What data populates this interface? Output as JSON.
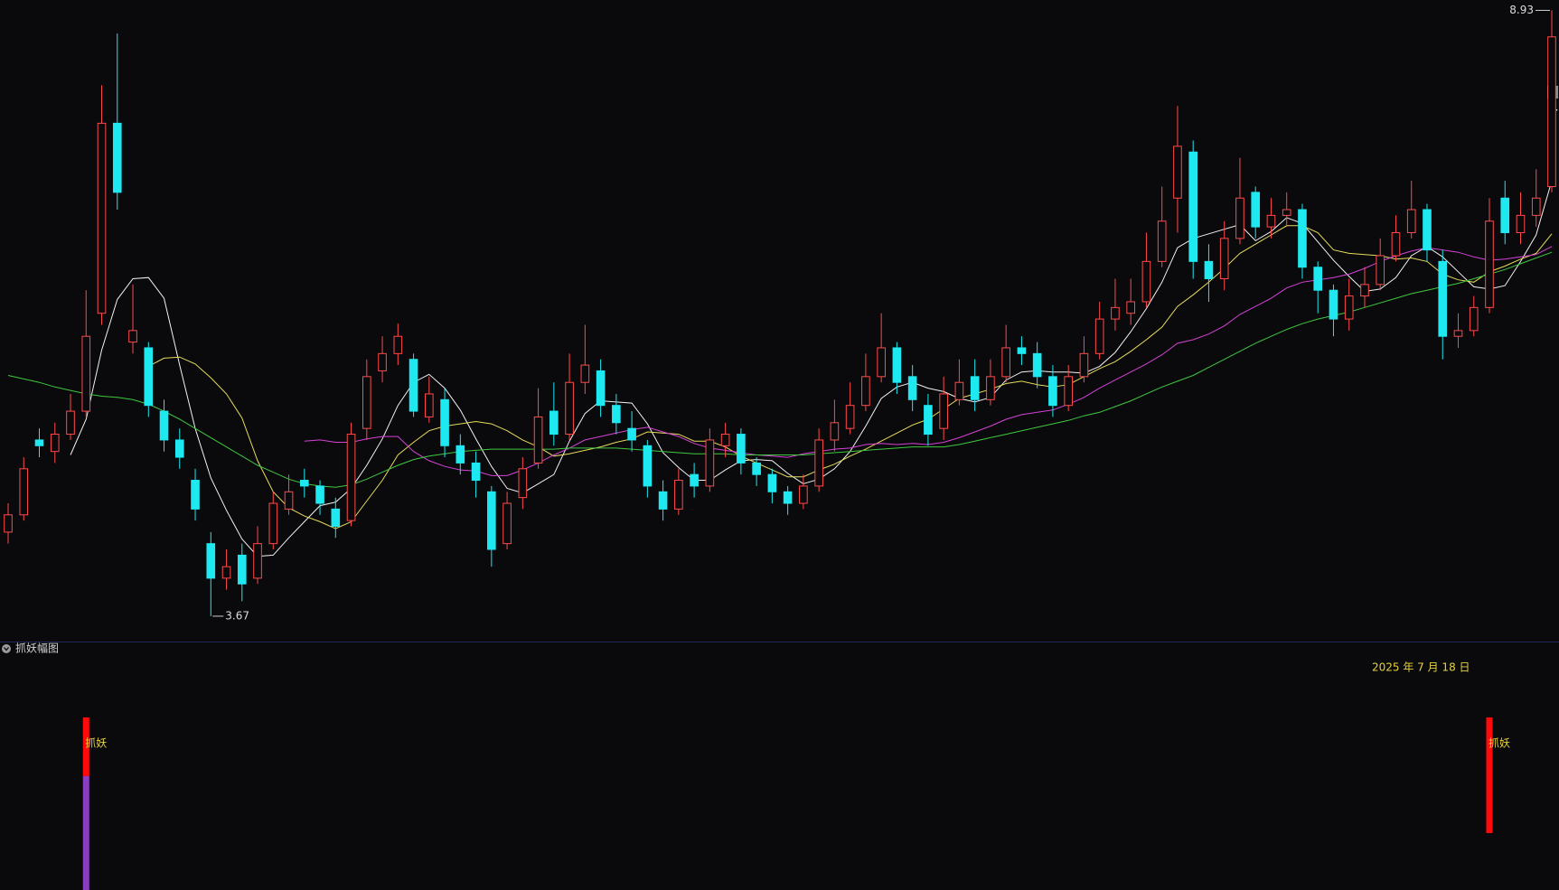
{
  "chart_data": {
    "type": "candlestick",
    "up_color": "#ff4a4a",
    "down_color": "#1ee8f0",
    "ylim": [
      3.45,
      9.02
    ],
    "open": [
      4.4,
      4.55,
      5.2,
      5.1,
      5.25,
      5.45,
      6.3,
      7.95,
      6.05,
      6.0,
      5.45,
      5.2,
      4.85,
      4.3,
      4.0,
      4.2,
      4.0,
      4.3,
      4.6,
      4.85,
      4.8,
      4.6,
      4.5,
      5.3,
      5.8,
      5.95,
      5.9,
      5.4,
      5.55,
      5.15,
      5.0,
      4.75,
      4.3,
      4.7,
      5.0,
      5.45,
      5.25,
      5.7,
      5.8,
      5.5,
      5.3,
      5.15,
      4.75,
      4.6,
      4.9,
      4.8,
      5.15,
      5.25,
      5.0,
      4.9,
      4.75,
      4.65,
      4.8,
      5.2,
      5.3,
      5.5,
      5.75,
      6.0,
      5.75,
      5.5,
      5.3,
      5.55,
      5.75,
      5.55,
      5.75,
      6.0,
      5.95,
      5.75,
      5.5,
      5.75,
      5.95,
      6.25,
      6.3,
      6.4,
      6.75,
      7.3,
      7.7,
      6.75,
      6.6,
      6.95,
      7.35,
      7.05,
      7.15,
      7.2,
      6.7,
      6.5,
      6.25,
      6.45,
      6.55,
      6.8,
      7.0,
      7.2,
      6.75,
      6.1,
      6.15,
      6.35,
      7.3,
      7.0,
      7.15,
      7.4
    ],
    "high": [
      4.65,
      5.05,
      5.3,
      5.35,
      5.6,
      6.5,
      8.28,
      8.73,
      6.55,
      6.05,
      5.55,
      5.3,
      4.95,
      4.4,
      4.25,
      4.3,
      4.45,
      4.75,
      4.9,
      4.95,
      4.85,
      4.7,
      5.35,
      5.9,
      6.1,
      6.21,
      5.95,
      5.75,
      5.65,
      5.25,
      5.1,
      4.8,
      4.75,
      5.05,
      5.65,
      5.7,
      5.95,
      6.2,
      5.9,
      5.6,
      5.45,
      5.2,
      4.85,
      4.95,
      5.0,
      5.3,
      5.35,
      5.3,
      5.05,
      4.95,
      4.8,
      4.9,
      5.3,
      5.55,
      5.7,
      5.95,
      6.3,
      6.05,
      5.85,
      5.6,
      5.75,
      5.9,
      5.9,
      5.9,
      6.2,
      6.1,
      6.05,
      5.85,
      5.85,
      6.1,
      6.4,
      6.6,
      6.6,
      7.0,
      7.4,
      8.1,
      7.8,
      6.9,
      7.1,
      7.65,
      7.4,
      7.3,
      7.35,
      7.25,
      6.75,
      6.55,
      6.6,
      6.7,
      6.95,
      7.15,
      7.45,
      7.25,
      6.85,
      6.3,
      6.45,
      7.3,
      7.45,
      7.35,
      7.55,
      8.93
    ],
    "low": [
      4.3,
      4.5,
      5.05,
      5.0,
      5.2,
      5.4,
      6.2,
      7.2,
      5.95,
      5.4,
      5.1,
      4.95,
      4.5,
      3.67,
      3.9,
      3.8,
      3.95,
      4.25,
      4.55,
      4.7,
      4.55,
      4.35,
      4.45,
      5.2,
      5.7,
      5.85,
      5.4,
      5.35,
      5.05,
      4.9,
      4.7,
      4.1,
      4.25,
      4.6,
      4.95,
      5.15,
      5.2,
      5.6,
      5.4,
      5.25,
      5.1,
      4.7,
      4.5,
      4.55,
      4.7,
      4.75,
      5.05,
      4.9,
      4.8,
      4.65,
      4.55,
      4.6,
      4.75,
      5.1,
      5.25,
      5.45,
      5.7,
      5.6,
      5.45,
      5.15,
      5.2,
      5.5,
      5.45,
      5.5,
      5.7,
      5.85,
      5.65,
      5.4,
      5.45,
      5.7,
      5.9,
      6.15,
      6.2,
      6.35,
      6.7,
      7.0,
      6.6,
      6.4,
      6.5,
      6.9,
      6.95,
      6.95,
      7.05,
      6.6,
      6.3,
      6.1,
      6.15,
      6.35,
      6.5,
      6.75,
      6.95,
      6.75,
      5.9,
      6.0,
      6.1,
      6.3,
      6.9,
      6.9,
      7.05,
      7.35
    ],
    "close": [
      4.55,
      4.95,
      5.15,
      5.25,
      5.45,
      6.1,
      7.95,
      7.35,
      6.15,
      5.5,
      5.2,
      5.05,
      4.6,
      4.0,
      4.1,
      3.95,
      4.3,
      4.65,
      4.75,
      4.8,
      4.65,
      4.45,
      5.25,
      5.75,
      5.95,
      6.1,
      5.45,
      5.6,
      5.15,
      5.0,
      4.85,
      4.25,
      4.65,
      4.95,
      5.4,
      5.25,
      5.7,
      5.85,
      5.5,
      5.35,
      5.2,
      4.8,
      4.6,
      4.85,
      4.8,
      5.2,
      5.25,
      5.0,
      4.9,
      4.75,
      4.65,
      4.8,
      5.2,
      5.35,
      5.5,
      5.75,
      6.0,
      5.7,
      5.55,
      5.25,
      5.6,
      5.7,
      5.55,
      5.75,
      6.0,
      5.95,
      5.75,
      5.5,
      5.75,
      5.95,
      6.25,
      6.35,
      6.4,
      6.75,
      7.1,
      7.75,
      6.75,
      6.6,
      6.95,
      7.3,
      7.05,
      7.15,
      7.2,
      6.7,
      6.5,
      6.25,
      6.45,
      6.55,
      6.8,
      7.0,
      7.2,
      6.85,
      6.1,
      6.15,
      6.35,
      7.1,
      7.0,
      7.15,
      7.3,
      8.7
    ],
    "lines": [
      {
        "color": "#f2f2f2",
        "values": [
          null,
          null,
          null,
          null,
          5.07,
          5.38,
          5.98,
          6.42,
          6.6,
          6.61,
          6.43,
          5.85,
          5.3,
          4.87,
          4.59,
          4.34,
          4.19,
          4.2,
          4.35,
          4.49,
          4.63,
          4.66,
          4.78,
          4.98,
          5.21,
          5.5,
          5.7,
          5.77,
          5.65,
          5.46,
          5.21,
          4.97,
          4.78,
          4.74,
          4.82,
          4.9,
          5.19,
          5.43,
          5.54,
          5.53,
          5.52,
          5.34,
          5.09,
          4.96,
          4.85,
          4.85,
          4.94,
          5.02,
          5.03,
          5.02,
          4.91,
          4.82,
          4.86,
          4.95,
          5.1,
          5.32,
          5.56,
          5.66,
          5.7,
          5.65,
          5.62,
          5.56,
          5.53,
          5.57,
          5.72,
          5.79,
          5.8,
          5.79,
          5.79,
          5.78,
          5.84,
          5.96,
          6.14,
          6.34,
          6.57,
          6.87,
          6.95,
          6.99,
          7.03,
          7.07,
          6.93,
          7.01,
          7.13,
          7.08,
          6.92,
          6.76,
          6.62,
          6.49,
          6.51,
          6.61,
          6.8,
          6.88,
          6.79,
          6.66,
          6.53,
          6.51,
          6.54,
          6.75,
          6.98,
          7.45
        ]
      },
      {
        "color": "#e6dc5a",
        "values": [
          null,
          null,
          null,
          null,
          null,
          null,
          null,
          null,
          null,
          5.84,
          5.91,
          5.92,
          5.86,
          5.74,
          5.6,
          5.39,
          5.02,
          4.75,
          4.61,
          4.54,
          4.49,
          4.43,
          4.49,
          4.67,
          4.85,
          5.07,
          5.18,
          5.28,
          5.32,
          5.34,
          5.36,
          5.34,
          5.28,
          5.2,
          5.14,
          5.06,
          5.08,
          5.11,
          5.14,
          5.18,
          5.21,
          5.27,
          5.26,
          5.25,
          5.19,
          5.19,
          5.14,
          5.06,
          5.0,
          4.94,
          4.88,
          4.88,
          4.94,
          4.99,
          5.06,
          5.12,
          5.19,
          5.26,
          5.33,
          5.38,
          5.47,
          5.56,
          5.6,
          5.64,
          5.69,
          5.71,
          5.68,
          5.66,
          5.68,
          5.75,
          5.82,
          5.88,
          5.97,
          6.07,
          6.18,
          6.36,
          6.46,
          6.57,
          6.69,
          6.82,
          6.9,
          6.98,
          7.06,
          7.06,
          7.0,
          6.85,
          6.82,
          6.81,
          6.8,
          6.77,
          6.78,
          6.75,
          6.64,
          6.59,
          6.57,
          6.66,
          6.71,
          6.77,
          6.82,
          6.99
        ]
      },
      {
        "color": "#d542d5",
        "values": [
          null,
          null,
          null,
          null,
          null,
          null,
          null,
          null,
          null,
          null,
          null,
          null,
          null,
          null,
          null,
          null,
          null,
          null,
          null,
          5.19,
          5.2,
          5.18,
          5.18,
          5.21,
          5.23,
          5.23,
          5.1,
          5.02,
          4.97,
          4.94,
          4.93,
          4.89,
          4.89,
          4.94,
          5.0,
          5.07,
          5.13,
          5.2,
          5.23,
          5.26,
          5.29,
          5.31,
          5.27,
          5.23,
          5.17,
          5.13,
          5.11,
          5.09,
          5.07,
          5.06,
          5.05,
          5.08,
          5.1,
          5.12,
          5.13,
          5.16,
          5.17,
          5.16,
          5.17,
          5.16,
          5.18,
          5.22,
          5.27,
          5.32,
          5.38,
          5.42,
          5.44,
          5.46,
          5.51,
          5.57,
          5.65,
          5.72,
          5.79,
          5.86,
          5.94,
          6.04,
          6.07,
          6.12,
          6.19,
          6.29,
          6.36,
          6.43,
          6.52,
          6.57,
          6.59,
          6.61,
          6.64,
          6.69,
          6.75,
          6.8,
          6.84,
          6.87,
          6.85,
          6.83,
          6.79,
          6.76,
          6.77,
          6.79,
          6.81,
          6.88
        ]
      },
      {
        "color": "#3fc83f",
        "values": [
          5.76,
          5.73,
          5.7,
          5.66,
          5.63,
          5.6,
          5.58,
          5.57,
          5.55,
          5.51,
          5.45,
          5.38,
          5.3,
          5.22,
          5.14,
          5.06,
          4.98,
          4.92,
          4.86,
          4.82,
          4.8,
          4.79,
          4.81,
          4.86,
          4.92,
          4.98,
          5.03,
          5.06,
          5.08,
          5.1,
          5.11,
          5.12,
          5.12,
          5.12,
          5.12,
          5.12,
          5.13,
          5.13,
          5.13,
          5.13,
          5.12,
          5.11,
          5.1,
          5.09,
          5.08,
          5.08,
          5.08,
          5.07,
          5.07,
          5.07,
          5.07,
          5.07,
          5.08,
          5.09,
          5.1,
          5.11,
          5.12,
          5.13,
          5.14,
          5.14,
          5.14,
          5.16,
          5.19,
          5.22,
          5.25,
          5.28,
          5.31,
          5.34,
          5.37,
          5.41,
          5.44,
          5.49,
          5.54,
          5.6,
          5.66,
          5.71,
          5.76,
          5.83,
          5.9,
          5.97,
          6.04,
          6.1,
          6.16,
          6.21,
          6.25,
          6.28,
          6.31,
          6.35,
          6.39,
          6.43,
          6.47,
          6.5,
          6.53,
          6.56,
          6.6,
          6.64,
          6.68,
          6.73,
          6.78,
          6.83
        ]
      }
    ],
    "price_label": "8.",
    "indicator": {
      "title": "抓妖幅图",
      "date": "2025 年 7 月 18 日",
      "ylim": [
        0,
        144
      ],
      "purple_color": "#8b3dc0",
      "red_color": "#ff0a0a",
      "label_color": "#e6d23c",
      "purple": [
        null,
        null,
        null,
        null,
        null,
        66,
        null,
        null,
        null,
        null,
        null,
        null,
        null,
        null,
        null,
        null,
        null,
        null,
        null,
        null,
        null,
        null,
        null,
        null,
        null,
        null,
        null,
        null,
        null,
        null,
        null,
        null,
        null,
        null,
        null,
        null,
        null,
        null,
        null,
        null,
        null,
        null,
        null,
        null,
        null,
        null,
        null,
        null,
        null,
        null,
        null,
        null,
        null,
        null,
        null,
        null,
        null,
        null,
        null,
        null,
        null,
        null,
        null,
        null,
        null,
        null,
        null,
        null,
        null,
        null,
        null,
        null,
        null,
        null,
        null,
        null,
        null,
        null,
        null,
        null,
        null,
        null,
        null,
        null,
        null,
        null,
        null,
        null,
        null,
        null,
        null,
        null,
        null,
        null,
        null,
        null,
        null,
        null,
        null,
        null
      ],
      "red_low": [
        null,
        null,
        null,
        null,
        null,
        66,
        null,
        null,
        null,
        null,
        null,
        null,
        null,
        null,
        null,
        null,
        null,
        null,
        null,
        null,
        null,
        null,
        null,
        null,
        null,
        null,
        null,
        null,
        null,
        null,
        null,
        null,
        null,
        null,
        null,
        null,
        null,
        null,
        null,
        null,
        null,
        null,
        null,
        null,
        null,
        null,
        null,
        null,
        null,
        null,
        null,
        null,
        null,
        null,
        null,
        null,
        null,
        null,
        null,
        null,
        null,
        null,
        null,
        null,
        null,
        null,
        null,
        null,
        null,
        null,
        null,
        null,
        null,
        null,
        null,
        null,
        null,
        null,
        null,
        null,
        null,
        null,
        null,
        null,
        null,
        null,
        null,
        null,
        null,
        null,
        null,
        null,
        null,
        null,
        null,
        33,
        null,
        null,
        null,
        null
      ],
      "red_high": [
        null,
        null,
        null,
        null,
        null,
        100,
        null,
        null,
        null,
        null,
        null,
        null,
        null,
        null,
        null,
        null,
        null,
        null,
        null,
        null,
        null,
        null,
        null,
        null,
        null,
        null,
        null,
        null,
        null,
        null,
        null,
        null,
        null,
        null,
        null,
        null,
        null,
        null,
        null,
        null,
        null,
        null,
        null,
        null,
        null,
        null,
        null,
        null,
        null,
        null,
        null,
        null,
        null,
        null,
        null,
        null,
        null,
        null,
        null,
        null,
        null,
        null,
        null,
        null,
        null,
        null,
        null,
        null,
        null,
        null,
        null,
        null,
        null,
        null,
        null,
        null,
        null,
        null,
        null,
        null,
        null,
        null,
        null,
        null,
        null,
        null,
        null,
        null,
        null,
        null,
        null,
        null,
        null,
        null,
        null,
        100,
        null,
        null,
        null,
        null
      ],
      "labels": [
        null,
        null,
        null,
        null,
        null,
        "抓妖",
        null,
        null,
        null,
        null,
        null,
        null,
        null,
        null,
        null,
        null,
        null,
        null,
        null,
        null,
        null,
        null,
        null,
        null,
        null,
        null,
        null,
        null,
        null,
        null,
        null,
        null,
        null,
        null,
        null,
        null,
        null,
        null,
        null,
        null,
        null,
        null,
        null,
        null,
        null,
        null,
        null,
        null,
        null,
        null,
        null,
        null,
        null,
        null,
        null,
        null,
        null,
        null,
        null,
        null,
        null,
        null,
        null,
        null,
        null,
        null,
        null,
        null,
        null,
        null,
        null,
        null,
        null,
        null,
        null,
        null,
        null,
        null,
        null,
        null,
        null,
        null,
        null,
        null,
        null,
        null,
        null,
        null,
        null,
        null,
        null,
        null,
        null,
        null,
        null,
        "抓妖",
        null,
        null,
        null,
        null
      ]
    }
  }
}
